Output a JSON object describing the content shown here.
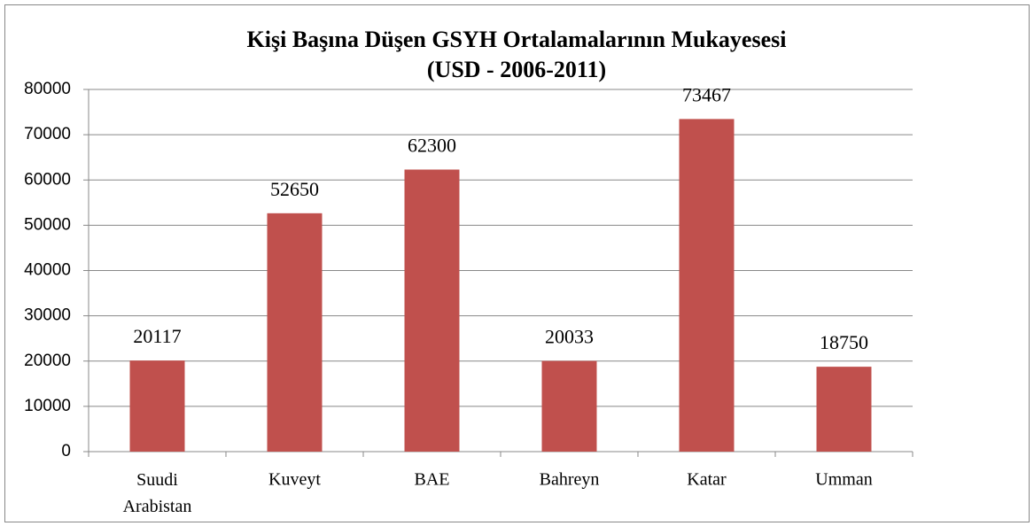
{
  "chart_data": {
    "type": "bar",
    "title": "Kişi Başına Düşen GSYH Ortalamalarının Mukayesesi",
    "subtitle": "(USD - 2006-2011)",
    "categories": [
      "Suudi Arabistan",
      "Kuveyt",
      "BAE",
      "Bahreyn",
      "Katar",
      "Umman"
    ],
    "values": [
      20117,
      52650,
      62300,
      20033,
      73467,
      18750
    ],
    "color": "#c0504d",
    "ylim": [
      0,
      80000
    ],
    "yticks": [
      0,
      10000,
      20000,
      30000,
      40000,
      50000,
      60000,
      70000,
      80000
    ],
    "grid": true
  }
}
